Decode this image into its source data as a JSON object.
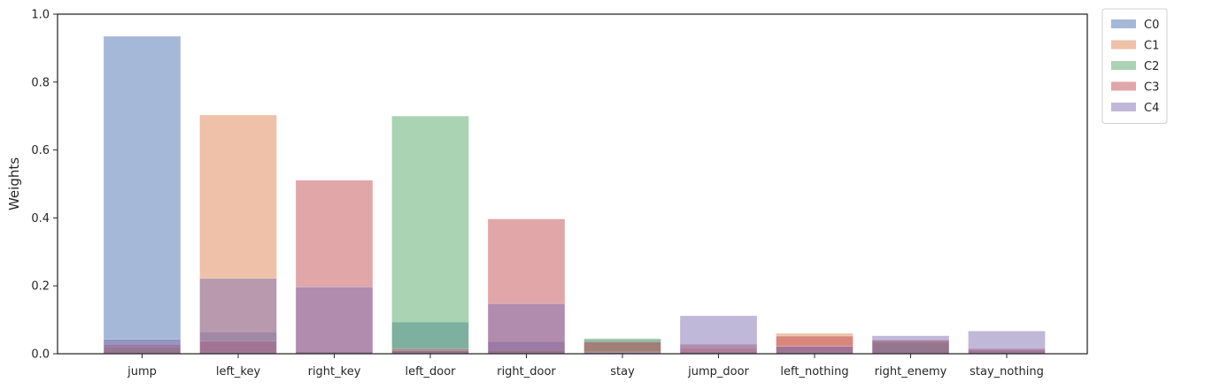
{
  "chart_data": {
    "type": "bar",
    "title": "",
    "xlabel": "",
    "ylabel": "Weights",
    "ylim": [
      0,
      1.0
    ],
    "yticks": [
      0.0,
      0.2,
      0.4,
      0.6,
      0.8,
      1.0
    ],
    "ytick_labels": [
      "0.0",
      "0.2",
      "0.4",
      "0.6",
      "0.8",
      "1.0"
    ],
    "grid": false,
    "legend_position": "outside-top-right",
    "overlay": true,
    "bar_alpha": 0.5,
    "categories": [
      "jump",
      "left_key",
      "right_key",
      "left_door",
      "right_door",
      "stay",
      "jump_door",
      "left_nothing",
      "right_enemy",
      "stay_nothing"
    ],
    "series": [
      {
        "name": "C0",
        "color": "#4c72b0",
        "values": [
          0.935,
          0.063,
          0.005,
          0.093,
          0.035,
          0.04,
          0.005,
          0.022,
          0.03,
          0.01
        ]
      },
      {
        "name": "C1",
        "color": "#dd8452",
        "values": [
          0.01,
          0.703,
          0.005,
          0.012,
          0.01,
          0.003,
          0.015,
          0.06,
          0.04,
          0.01
        ]
      },
      {
        "name": "C2",
        "color": "#55a868",
        "values": [
          0.02,
          0.005,
          0.005,
          0.7,
          0.01,
          0.045,
          0.005,
          0.005,
          0.035,
          0.005
        ]
      },
      {
        "name": "C3",
        "color": "#c44e52",
        "values": [
          0.028,
          0.037,
          0.511,
          0.015,
          0.397,
          0.035,
          0.028,
          0.052,
          0.04,
          0.015
        ]
      },
      {
        "name": "C4",
        "color": "#8172b3",
        "values": [
          0.043,
          0.222,
          0.197,
          0.01,
          0.148,
          0.005,
          0.112,
          0.022,
          0.053,
          0.067
        ]
      }
    ]
  }
}
